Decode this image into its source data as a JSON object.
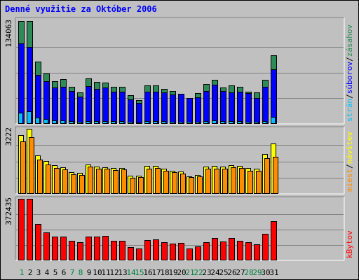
{
  "title": "Denné využitie za Október 2006",
  "colors": {
    "background": "#c0c0c0",
    "pages": "#2e8b57",
    "files": "#0000ff",
    "hits": "#00bfff",
    "sites": "#ff8c00",
    "visits": "#ffff00",
    "kbytes": "#ff0000",
    "title": "#0000ff",
    "weekend_label": "#008040"
  },
  "chart_data": [
    {
      "type": "bar",
      "name": "hits-files-pages",
      "categories": [
        "1",
        "2",
        "3",
        "4",
        "5",
        "6",
        "7",
        "8",
        "9",
        "10",
        "11",
        "12",
        "13",
        "14",
        "15",
        "16",
        "17",
        "18",
        "19",
        "20",
        "21",
        "22",
        "23",
        "24",
        "25",
        "26",
        "27",
        "28",
        "29",
        "30",
        "31"
      ],
      "ymax_label": "134063",
      "ylim": [
        0,
        134063
      ],
      "legend_labels": [
        {
          "text": "zásahov",
          "color_key": "pages"
        },
        {
          "text": "/",
          "color_key": "separator"
        },
        {
          "text": "súborov",
          "color_key": "files"
        },
        {
          "text": "/",
          "color_key": "separator"
        },
        {
          "text": "strán",
          "color_key": "hits"
        }
      ],
      "series": [
        {
          "name": "zásahov",
          "color_key": "pages",
          "values": [
            134063,
            134063,
            81000,
            66000,
            56000,
            58000,
            48000,
            41000,
            59000,
            55000,
            54000,
            48000,
            48000,
            37000,
            31000,
            50000,
            50000,
            46000,
            43000,
            36000,
            33000,
            40000,
            52000,
            57000,
            47000,
            50000,
            48000,
            42000,
            41000,
            57000,
            89000
          ]
        },
        {
          "name": "súborov",
          "color_key": "files",
          "values": [
            105000,
            100000,
            64000,
            56000,
            47000,
            48000,
            43000,
            36000,
            49000,
            46000,
            47000,
            42000,
            42000,
            32000,
            27000,
            42000,
            42000,
            41000,
            38000,
            39000,
            34000,
            35000,
            43000,
            51000,
            43000,
            41000,
            42000,
            40000,
            34000,
            48000,
            71000
          ]
        },
        {
          "name": "strán",
          "color_key": "hits",
          "values": [
            15000,
            16000,
            8000,
            6000,
            5000,
            5000,
            4000,
            3000,
            4000,
            4000,
            4000,
            4000,
            4000,
            3000,
            2000,
            4000,
            4000,
            4000,
            3000,
            3000,
            3000,
            3000,
            4000,
            5000,
            4000,
            4000,
            4000,
            3000,
            3000,
            4000,
            9000
          ]
        }
      ]
    },
    {
      "type": "bar",
      "name": "visits-sites",
      "categories": [
        "1",
        "2",
        "3",
        "4",
        "5",
        "6",
        "7",
        "8",
        "9",
        "10",
        "11",
        "12",
        "13",
        "14",
        "15",
        "16",
        "17",
        "18",
        "19",
        "20",
        "21",
        "22",
        "23",
        "24",
        "25",
        "26",
        "27",
        "28",
        "29",
        "30",
        "31"
      ],
      "ymax_label": "3222",
      "ylim": [
        0,
        3222
      ],
      "legend_labels": [
        {
          "text": "návštev",
          "color_key": "visits"
        },
        {
          "text": "/",
          "color_key": "separator"
        },
        {
          "text": "miest",
          "color_key": "sites"
        }
      ],
      "series": [
        {
          "name": "návštev",
          "color_key": "visits",
          "values": [
            2900,
            3222,
            1900,
            1620,
            1420,
            1320,
            1080,
            1040,
            1460,
            1360,
            1330,
            1270,
            1290,
            900,
            900,
            1380,
            1380,
            1250,
            1150,
            1100,
            880,
            920,
            1360,
            1370,
            1360,
            1420,
            1390,
            1280,
            1240,
            1980,
            2500
          ]
        },
        {
          "name": "miest",
          "color_key": "sites",
          "values": [
            2600,
            2800,
            1700,
            1470,
            1290,
            1210,
            970,
            950,
            1350,
            1260,
            1250,
            1170,
            1210,
            810,
            830,
            1260,
            1270,
            1150,
            1080,
            1020,
            820,
            850,
            1250,
            1250,
            1250,
            1300,
            1280,
            1160,
            1150,
            1760,
            1850
          ]
        }
      ]
    },
    {
      "type": "bar",
      "name": "kbytes",
      "categories": [
        "1",
        "2",
        "3",
        "4",
        "5",
        "6",
        "7",
        "8",
        "9",
        "10",
        "11",
        "12",
        "13",
        "14",
        "15",
        "16",
        "17",
        "18",
        "19",
        "20",
        "21",
        "22",
        "23",
        "24",
        "25",
        "26",
        "27",
        "28",
        "29",
        "30",
        "31"
      ],
      "ymax_label": "372435",
      "ylim": [
        0,
        372435
      ],
      "legend_labels": [
        {
          "text": "kBytov",
          "color_key": "kbytes"
        }
      ],
      "series": [
        {
          "name": "kBytov",
          "color_key": "kbytes",
          "values": [
            372435,
            372435,
            220000,
            170000,
            145000,
            143000,
            118000,
            110000,
            145000,
            143000,
            148000,
            118000,
            118000,
            80000,
            72000,
            122000,
            127000,
            110000,
            103000,
            104000,
            72000,
            85000,
            112000,
            137000,
            113000,
            136000,
            118000,
            110000,
            97000,
            159000,
            236000
          ]
        }
      ]
    }
  ],
  "x_axis": {
    "labels": [
      "1",
      "2",
      "3",
      "4",
      "5",
      "6",
      "7",
      "8",
      "9",
      "10",
      "11",
      "12",
      "13",
      "14",
      "15",
      "16",
      "17",
      "18",
      "19",
      "20",
      "21",
      "22",
      "23",
      "24",
      "25",
      "26",
      "27",
      "28",
      "29",
      "30",
      "31"
    ],
    "weekend_days": [
      "1",
      "7",
      "8",
      "14",
      "15",
      "21",
      "22",
      "28",
      "29"
    ]
  }
}
